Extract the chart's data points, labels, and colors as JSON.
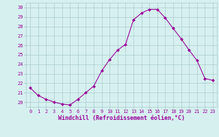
{
  "x": [
    0,
    1,
    2,
    3,
    4,
    5,
    6,
    7,
    8,
    9,
    10,
    11,
    12,
    13,
    14,
    15,
    16,
    17,
    18,
    19,
    20,
    21,
    22,
    23
  ],
  "y": [
    21.5,
    20.7,
    20.3,
    20.0,
    19.8,
    19.7,
    20.3,
    21.0,
    21.7,
    23.3,
    24.5,
    25.5,
    26.1,
    28.7,
    29.4,
    29.8,
    29.8,
    28.9,
    27.8,
    26.7,
    25.5,
    24.4,
    22.5,
    22.3
  ],
  "line_color": "#990099",
  "marker": "D",
  "marker_size": 2,
  "xlabel": "Windchill (Refroidissement éolien,°C)",
  "ylim": [
    19.5,
    30.5
  ],
  "yticks": [
    20,
    21,
    22,
    23,
    24,
    25,
    26,
    27,
    28,
    29,
    30
  ],
  "xlim": [
    -0.5,
    23.5
  ],
  "xticks": [
    0,
    1,
    2,
    3,
    4,
    5,
    6,
    7,
    8,
    9,
    10,
    11,
    12,
    13,
    14,
    15,
    16,
    17,
    18,
    19,
    20,
    21,
    22,
    23
  ],
  "bg_color": "#d6f0f0",
  "grid_color": "#aacccc",
  "tick_label_color": "#990099",
  "xlabel_color": "#990099",
  "tick_fontsize": 5,
  "xlabel_fontsize": 6
}
